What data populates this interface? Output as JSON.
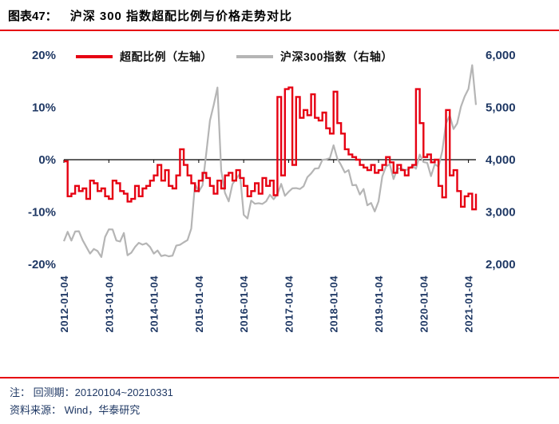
{
  "header": {
    "fig_label": "图表47：",
    "title": "沪深 300 指数超配比例与价格走势对比"
  },
  "footer": {
    "note_label": "注：",
    "note_text": "回测期：20120104~20210331",
    "source_label": "资料来源：",
    "source_text": "Wind，华泰研究"
  },
  "chart_data": {
    "type": "line",
    "title": "沪深300指数超配比例与价格走势对比",
    "legend_position": "top",
    "grid": false,
    "x_start": "2012-01",
    "x_freq": "monthly",
    "x_tick_labels": [
      "2012-01-04",
      "2013-01-04",
      "2014-01-04",
      "2015-01-04",
      "2016-01-04",
      "2017-01-04",
      "2018-01-04",
      "2019-01-04",
      "2020-01-04",
      "2021-01-04"
    ],
    "x_tick_indices": [
      0,
      12,
      24,
      36,
      48,
      60,
      72,
      84,
      96,
      108
    ],
    "left_axis": {
      "label": "超配比例",
      "min": -20,
      "max": 20,
      "ticks": [
        "20%",
        "10%",
        "0%",
        "-10%",
        "-20%"
      ],
      "tick_values": [
        20,
        10,
        0,
        -10,
        -20
      ]
    },
    "right_axis": {
      "label": "沪深300指数",
      "min": 2000,
      "max": 6000,
      "ticks": [
        "6,000",
        "5,000",
        "4,000",
        "3,000",
        "2,000"
      ],
      "tick_values": [
        6000,
        5000,
        4000,
        3000,
        2000
      ]
    },
    "series": [
      {
        "name": "超配比例（左轴）",
        "axis": "left",
        "color": "#e60012",
        "style": "step",
        "values": [
          -0.3,
          -7,
          -6.5,
          -5,
          -6,
          -5.5,
          -7.5,
          -4,
          -4.5,
          -6,
          -5.5,
          -7,
          -7.5,
          -4,
          -4.5,
          -6,
          -6.5,
          -8,
          -7.5,
          -5,
          -7,
          -5.5,
          -5,
          -4,
          -3,
          -1,
          -4,
          -2,
          -5,
          -5.5,
          -3,
          2,
          -1,
          -3,
          -4.5,
          -6,
          -4,
          -2.5,
          -3.5,
          -5,
          -6.5,
          -4,
          -5.5,
          -3,
          -2.5,
          -4,
          -2,
          -3.5,
          -5,
          -7,
          -6,
          -4.5,
          -6.5,
          -3.5,
          -5,
          -4,
          -6.8,
          12,
          -3,
          13.5,
          13.8,
          -1,
          12,
          8,
          9.5,
          8.5,
          12.5,
          8,
          7.5,
          9,
          6,
          5,
          13,
          7,
          5,
          2,
          1,
          0.5,
          0,
          -1,
          -1.5,
          -2,
          -1,
          -2.5,
          -2,
          -1,
          0.5,
          -0.5,
          -2.5,
          -1,
          -2,
          -3,
          -1.5,
          -1,
          13.5,
          7,
          0.5,
          1,
          -0.5,
          0,
          -5,
          -7.2,
          9.5,
          -3,
          -2,
          -6,
          -9,
          -7,
          -6.5,
          -9.5,
          -6.5
        ]
      },
      {
        "name": "沪深300指数（右轴）",
        "axis": "right",
        "color": "#b5b5b5",
        "style": "line",
        "values": [
          2441,
          2621,
          2454,
          2627,
          2632,
          2461,
          2333,
          2205,
          2293,
          2254,
          2139,
          2523,
          2669,
          2666,
          2455,
          2435,
          2599,
          2173,
          2221,
          2331,
          2410,
          2376,
          2402,
          2331,
          2204,
          2264,
          2158,
          2176,
          2153,
          2165,
          2357,
          2372,
          2420,
          2463,
          2683,
          3534,
          3390,
          3510,
          4124,
          4748,
          5046,
          5380,
          3796,
          3366,
          3203,
          3534,
          3635,
          3731,
          2946,
          2877,
          3218,
          3157,
          3168,
          3154,
          3204,
          3330,
          3245,
          3341,
          3538,
          3310,
          3388,
          3452,
          3456,
          3440,
          3493,
          3666,
          3738,
          3831,
          3837,
          3997,
          4006,
          4031,
          4276,
          4023,
          3898,
          3756,
          3802,
          3511,
          3518,
          3335,
          3439,
          3128,
          3173,
          3011,
          3202,
          3678,
          3872,
          3913,
          3630,
          3825,
          3835,
          3800,
          3815,
          3887,
          3828,
          4097,
          3955,
          3940,
          3686,
          3913,
          3867,
          4163,
          4696,
          4844,
          4587,
          4695,
          5013,
          5211,
          5352,
          5808,
          5048
        ]
      }
    ]
  }
}
